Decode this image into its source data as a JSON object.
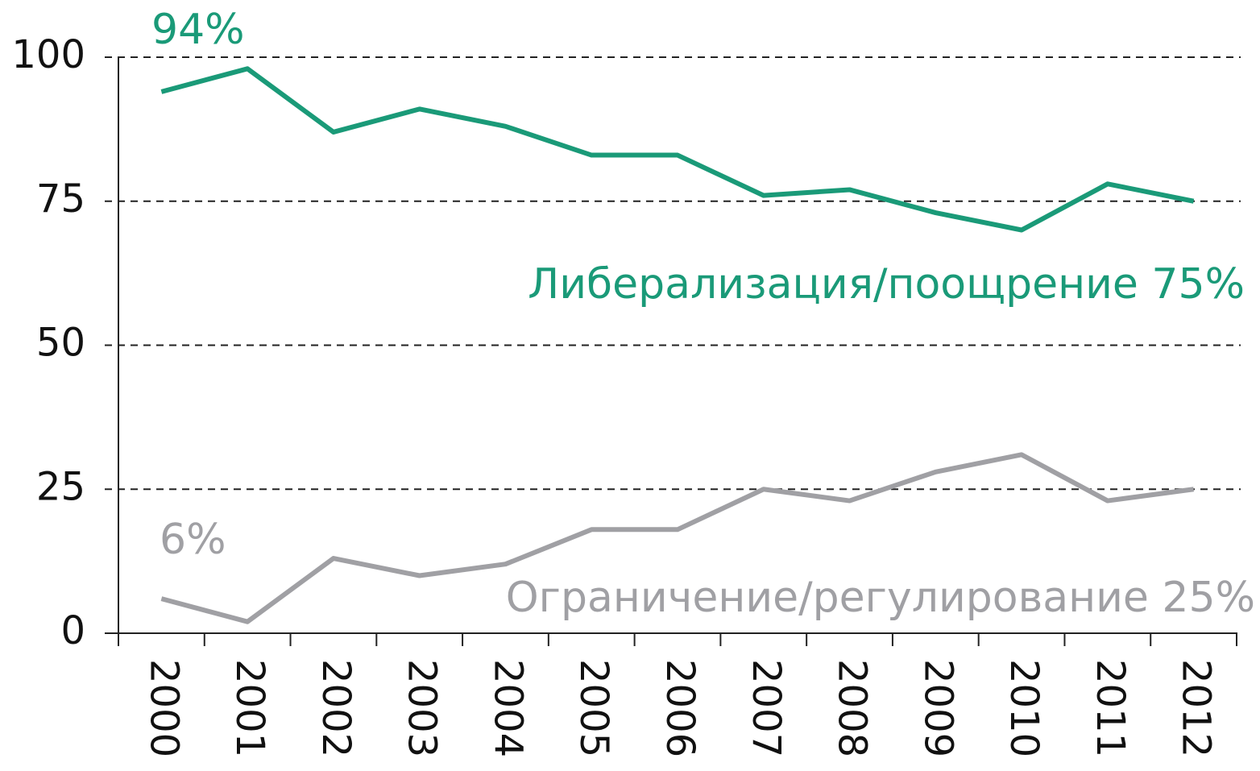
{
  "chart_data": {
    "type": "line",
    "categories": [
      "2000",
      "2001",
      "2002",
      "2003",
      "2004",
      "2005",
      "2006",
      "2007",
      "2008",
      "2009",
      "2010",
      "2011",
      "2012"
    ],
    "series": [
      {
        "name": "Либерализация/поощрение",
        "color": "#1a9a78",
        "values": [
          94,
          98,
          87,
          91,
          88,
          83,
          83,
          76,
          77,
          73,
          70,
          78,
          75
        ]
      },
      {
        "name": "Ограничение/регулирование",
        "color": "#a0a0a4",
        "values": [
          6,
          2,
          13,
          10,
          12,
          18,
          18,
          25,
          23,
          28,
          31,
          23,
          25
        ]
      }
    ],
    "annotations": [
      "94%",
      "Либерализация/поощрение 75%",
      "6%",
      "Ограничение/регулирование 25%"
    ],
    "ylim": [
      0,
      100
    ],
    "yticks": [
      0,
      25,
      50,
      75,
      100
    ],
    "grid": true
  }
}
